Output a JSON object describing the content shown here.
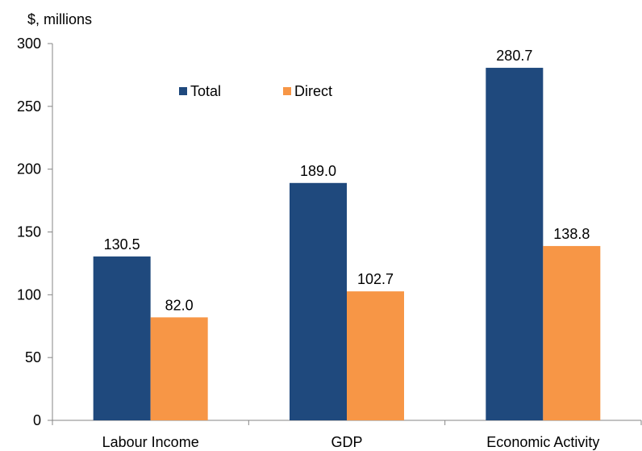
{
  "chart_data": {
    "type": "bar",
    "title": "",
    "xlabel": "",
    "ylabel": "",
    "unit_label": "$, millions",
    "categories": [
      "Labour Income",
      "GDP",
      "Economic Activity"
    ],
    "series": [
      {
        "name": "Total",
        "color": "#1f497d",
        "values": [
          130.5,
          189.0,
          280.7
        ],
        "labels": [
          "130.5",
          "189.0",
          "280.7"
        ]
      },
      {
        "name": "Direct",
        "color": "#f79646",
        "values": [
          82.0,
          102.7,
          138.8
        ],
        "labels": [
          "82.0",
          "102.7",
          "138.8"
        ]
      }
    ],
    "ylim": [
      0,
      300
    ],
    "yticks": [
      0,
      50,
      100,
      150,
      200,
      250,
      300
    ],
    "ytick_labels": [
      "0",
      "50",
      "100",
      "150",
      "200",
      "250",
      "300"
    ],
    "grid": false,
    "legend_position": "top-center"
  }
}
